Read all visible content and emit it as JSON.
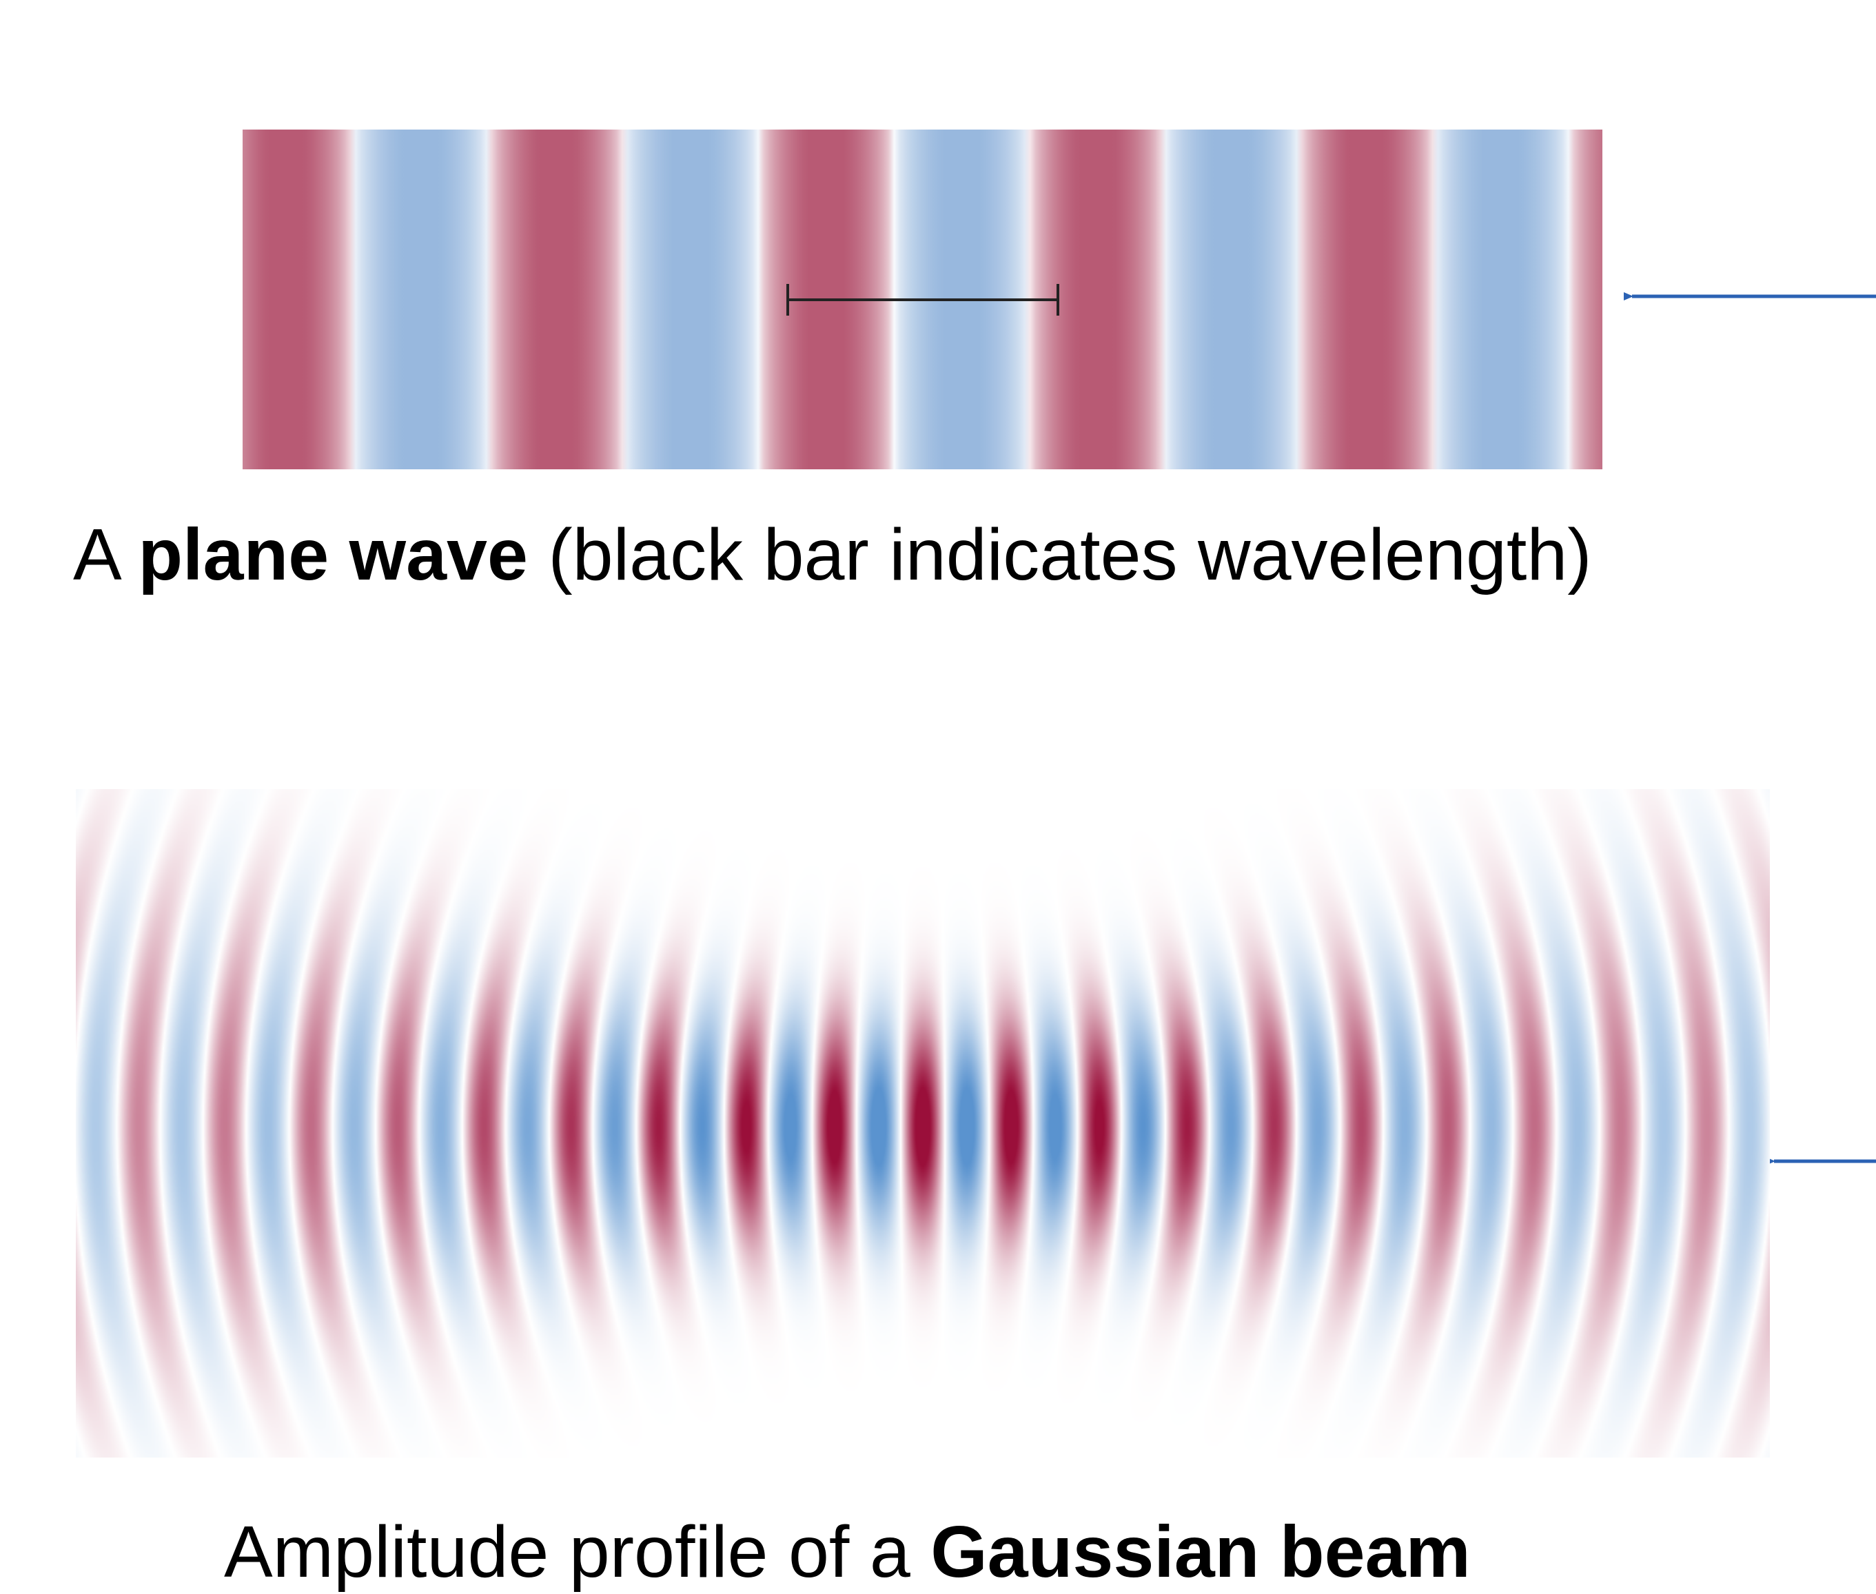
{
  "plane_wave": {
    "caption_prefix": "A ",
    "caption_bold": "plane wave",
    "caption_suffix": " (black bar indicates wavelength)",
    "positive_color": "#b85a74",
    "negative_color": "#98b8de",
    "zero_color": "#ffffff",
    "wavelength_bar_color": "#222222",
    "arrow_color": "#2b62b4"
  },
  "gaussian_beam": {
    "caption_prefix": "Amplitude profile of a ",
    "caption_bold": "Gaussian beam",
    "positive_color": "#9a0f3a",
    "negative_color": "#5a93cf",
    "zero_color": "#ffffff",
    "arrow_color": "#2b62b4"
  }
}
